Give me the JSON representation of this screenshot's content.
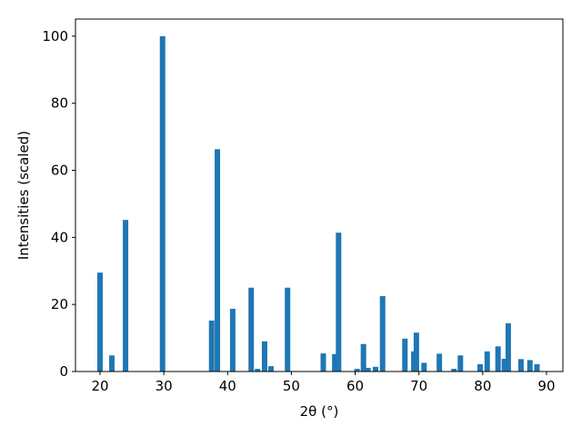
{
  "chart_data": {
    "type": "bar",
    "xlabel": "2θ (°)",
    "ylabel": "Intensities (scaled)",
    "x": [
      20.0,
      21.85,
      24.0,
      29.8,
      37.5,
      38.4,
      40.8,
      43.7,
      44.7,
      45.8,
      46.8,
      49.4,
      55.0,
      56.8,
      57.4,
      60.3,
      61.3,
      62.0,
      63.2,
      64.3,
      67.8,
      69.2,
      69.6,
      70.8,
      73.2,
      75.5,
      76.5,
      79.6,
      80.7,
      82.4,
      83.4,
      84.0,
      86.0,
      87.4,
      88.5
    ],
    "values": [
      29.5,
      4.8,
      45.2,
      100,
      15.2,
      66.3,
      18.7,
      25,
      0.8,
      9,
      1.6,
      25,
      5.4,
      5.2,
      41.4,
      0.8,
      8.2,
      1.1,
      1.4,
      22.5,
      9.8,
      6,
      11.6,
      2.6,
      5.3,
      0.8,
      4.8,
      2.2,
      6,
      7.5,
      3.8,
      14.4,
      3.7,
      3.4,
      2.2
    ],
    "color": "#1f77b4",
    "xlim": [
      16.15,
      92.57
    ],
    "xticks": [
      20,
      30,
      40,
      50,
      60,
      70,
      80,
      90
    ],
    "ylim": [
      0,
      105.1
    ],
    "yticks": [
      0,
      20,
      40,
      60,
      80,
      100
    ]
  }
}
